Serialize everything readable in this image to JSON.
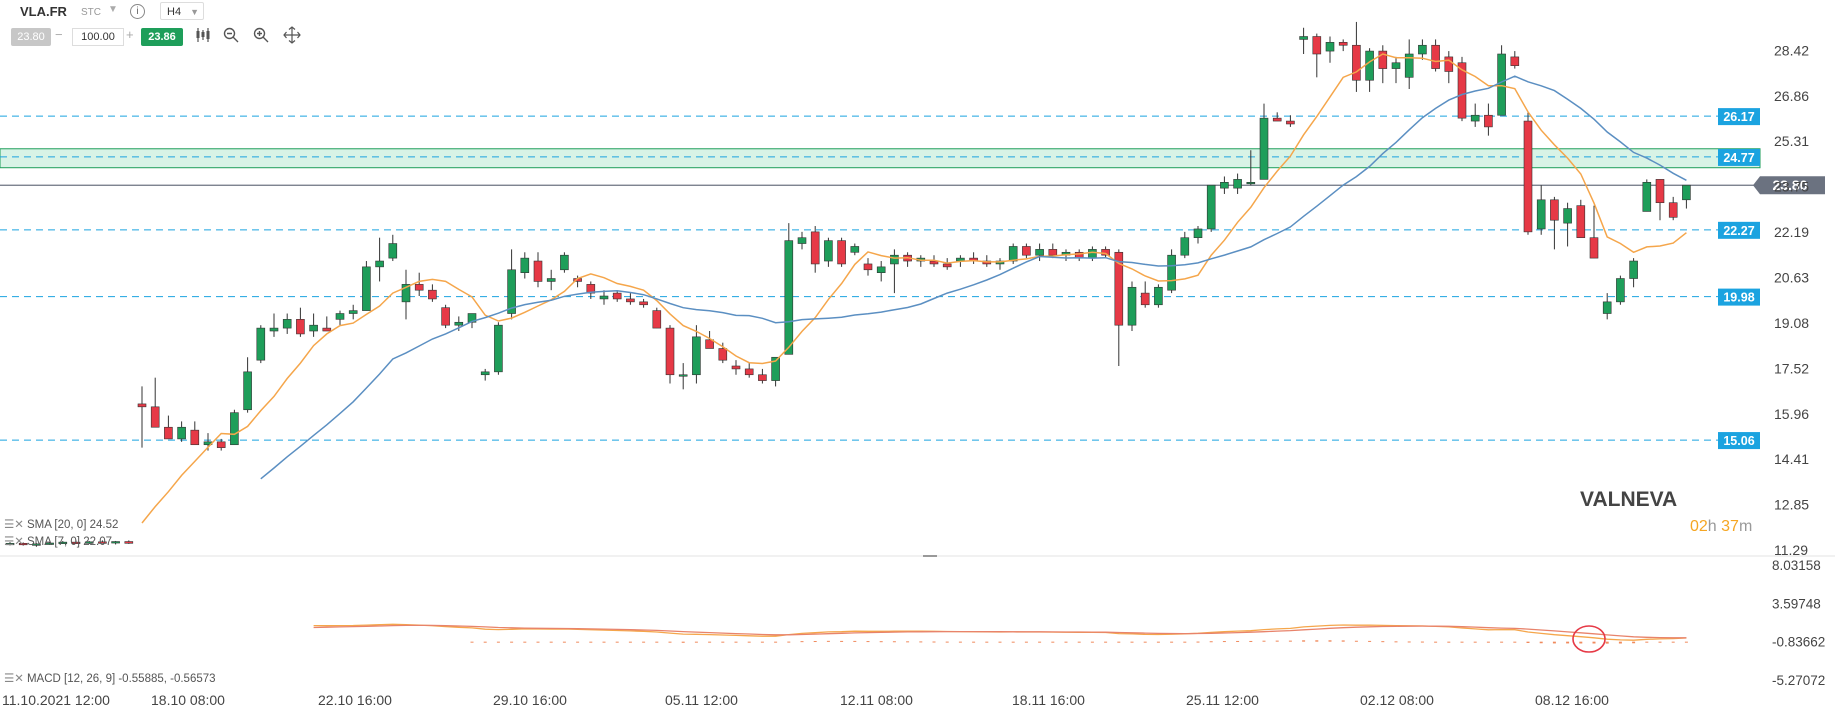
{
  "toolbar": {
    "symbol": "VLA.FR",
    "exchange": "STC",
    "info_icon": "i",
    "timeframe": "H4",
    "bid": "23.80",
    "volume": "100.00",
    "ask": "23.86",
    "tools": [
      "candlestick-icon",
      "zoom-out-icon",
      "zoom-in-icon",
      "crosshair-icon"
    ]
  },
  "indicators": {
    "sma20": "SMA [20, 0] 24.52",
    "sma7": "SMA [7, 0] 22.07",
    "macd": "MACD [12, 26, 9] -0.55885, -0.56573"
  },
  "brand": "VALNEVA",
  "timer": {
    "h": "02",
    "hu": "h",
    "m": "37",
    "mu": "m"
  },
  "colors": {
    "bull": "#1e9e5a",
    "bear": "#e63946",
    "sma7": "#f5a64b",
    "sma20": "#5b8fc2",
    "level": "#1ba3e0",
    "current": "#6b7280",
    "zone": "#d8f3e6",
    "macd": "#f08a5d"
  },
  "chart_data": {
    "type": "candlestick",
    "y_ticks": [
      "28.42",
      "26.86",
      "25.31",
      "23.75",
      "22.19",
      "20.63",
      "19.08",
      "17.52",
      "15.96",
      "14.41",
      "12.85",
      "11.29"
    ],
    "x_labels": [
      "11.10.2021 12:00",
      "18.10 08:00",
      "22.10 16:00",
      "29.10 16:00",
      "05.11 12:00",
      "12.11 08:00",
      "18.11 16:00",
      "25.11 12:00",
      "02.12 08:00",
      "08.12 16:00"
    ],
    "current_price": "23.80",
    "levels": [
      "26.17",
      "24.77",
      "22.27",
      "19.98",
      "15.06"
    ],
    "zone": [
      24.4,
      25.05
    ],
    "macd_ticks": [
      "8.03158",
      "3.59748",
      "-0.83662",
      "-5.27072"
    ],
    "candles": [
      [
        11.5,
        11.56,
        11.45,
        11.52
      ],
      [
        11.52,
        11.55,
        11.44,
        11.47
      ],
      [
        11.47,
        11.53,
        11.4,
        11.5
      ],
      [
        11.5,
        11.56,
        11.47,
        11.53
      ],
      [
        11.53,
        11.6,
        11.5,
        11.56
      ],
      [
        11.56,
        11.62,
        11.5,
        11.53
      ],
      [
        11.53,
        11.6,
        11.5,
        11.57
      ],
      [
        11.57,
        11.62,
        11.52,
        11.55
      ],
      [
        11.55,
        11.6,
        11.48,
        11.58
      ],
      [
        11.58,
        11.62,
        11.5,
        11.52
      ],
      [
        16.3,
        16.9,
        14.8,
        16.2
      ],
      [
        16.2,
        17.2,
        15.6,
        15.5
      ],
      [
        15.5,
        15.9,
        15.2,
        15.1
      ],
      [
        15.1,
        15.7,
        15.0,
        15.5
      ],
      [
        15.4,
        15.7,
        14.9,
        14.9
      ],
      [
        14.9,
        15.3,
        14.7,
        15.0
      ],
      [
        15.0,
        15.1,
        14.7,
        14.8
      ],
      [
        14.9,
        16.1,
        14.9,
        16.0
      ],
      [
        16.1,
        17.9,
        16.0,
        17.4
      ],
      [
        17.8,
        19.0,
        17.7,
        18.9
      ],
      [
        18.8,
        19.4,
        18.6,
        18.9
      ],
      [
        18.9,
        19.4,
        18.7,
        19.2
      ],
      [
        19.2,
        19.6,
        18.6,
        18.7
      ],
      [
        18.8,
        19.4,
        18.6,
        19.0
      ],
      [
        18.9,
        19.3,
        18.8,
        18.8
      ],
      [
        19.2,
        19.5,
        19.0,
        19.4
      ],
      [
        19.4,
        19.7,
        19.2,
        19.5
      ],
      [
        19.5,
        21.2,
        19.5,
        21.0
      ],
      [
        21.0,
        22.0,
        20.5,
        21.2
      ],
      [
        21.3,
        22.1,
        21.2,
        21.8
      ],
      [
        19.8,
        20.9,
        19.2,
        20.4
      ],
      [
        20.4,
        20.8,
        20.0,
        20.2
      ],
      [
        20.2,
        20.4,
        19.8,
        19.9
      ],
      [
        19.6,
        19.7,
        18.9,
        19.0
      ],
      [
        19.0,
        19.3,
        18.8,
        19.1
      ],
      [
        19.1,
        19.4,
        18.9,
        19.4
      ],
      [
        17.3,
        17.5,
        17.1,
        17.4
      ],
      [
        17.4,
        19.1,
        17.3,
        19.0
      ],
      [
        19.4,
        21.6,
        19.2,
        20.9
      ],
      [
        20.8,
        21.5,
        20.6,
        21.3
      ],
      [
        21.2,
        21.5,
        20.3,
        20.5
      ],
      [
        20.5,
        20.9,
        20.2,
        20.6
      ],
      [
        20.9,
        21.5,
        20.8,
        21.4
      ],
      [
        20.6,
        20.7,
        20.3,
        20.5
      ],
      [
        20.4,
        20.5,
        19.9,
        20.1
      ],
      [
        19.9,
        20.2,
        19.7,
        20.0
      ],
      [
        20.1,
        20.2,
        19.8,
        19.9
      ],
      [
        19.9,
        20.1,
        19.7,
        19.8
      ],
      [
        19.8,
        19.9,
        19.6,
        19.7
      ],
      [
        19.5,
        19.6,
        18.9,
        18.9
      ],
      [
        18.9,
        19.0,
        17.0,
        17.3
      ],
      [
        17.3,
        17.7,
        16.8,
        17.3
      ],
      [
        17.3,
        19.0,
        17.0,
        18.6
      ],
      [
        18.5,
        18.8,
        18.2,
        18.2
      ],
      [
        18.2,
        18.4,
        17.7,
        17.8
      ],
      [
        17.6,
        17.8,
        17.3,
        17.5
      ],
      [
        17.5,
        17.7,
        17.2,
        17.3
      ],
      [
        17.3,
        17.5,
        17.0,
        17.1
      ],
      [
        17.1,
        17.9,
        16.9,
        17.9
      ],
      [
        18.0,
        22.5,
        18.0,
        21.9
      ],
      [
        21.8,
        22.2,
        21.6,
        22.0
      ],
      [
        22.2,
        22.4,
        20.8,
        21.1
      ],
      [
        21.2,
        22.0,
        21.0,
        21.9
      ],
      [
        21.9,
        22.0,
        21.0,
        21.1
      ],
      [
        21.5,
        21.8,
        21.4,
        21.7
      ],
      [
        21.1,
        21.3,
        20.7,
        20.9
      ],
      [
        20.8,
        21.2,
        20.5,
        21.0
      ],
      [
        21.1,
        21.6,
        20.1,
        21.4
      ],
      [
        21.4,
        21.5,
        21.0,
        21.2
      ],
      [
        21.2,
        21.4,
        21.0,
        21.3
      ],
      [
        21.2,
        21.4,
        21.0,
        21.1
      ],
      [
        21.1,
        21.3,
        20.9,
        21.0
      ],
      [
        21.2,
        21.4,
        21.0,
        21.3
      ],
      [
        21.3,
        21.5,
        21.1,
        21.2
      ],
      [
        21.2,
        21.4,
        21.0,
        21.1
      ],
      [
        21.1,
        21.3,
        20.9,
        21.2
      ],
      [
        21.2,
        21.8,
        21.1,
        21.7
      ],
      [
        21.7,
        21.8,
        21.3,
        21.4
      ],
      [
        21.4,
        21.8,
        21.2,
        21.6
      ],
      [
        21.6,
        21.8,
        21.3,
        21.4
      ],
      [
        21.4,
        21.6,
        21.2,
        21.5
      ],
      [
        21.5,
        21.6,
        21.2,
        21.3
      ],
      [
        21.3,
        21.7,
        21.2,
        21.6
      ],
      [
        21.6,
        21.7,
        21.3,
        21.4
      ],
      [
        21.5,
        21.6,
        17.6,
        19.0
      ],
      [
        19.0,
        20.5,
        18.8,
        20.3
      ],
      [
        20.1,
        20.5,
        19.6,
        19.7
      ],
      [
        19.7,
        20.4,
        19.6,
        20.3
      ],
      [
        20.2,
        21.6,
        20.1,
        21.4
      ],
      [
        21.4,
        22.2,
        21.3,
        22.0
      ],
      [
        22.0,
        22.4,
        21.8,
        22.3
      ],
      [
        22.3,
        23.8,
        22.2,
        23.8
      ],
      [
        23.7,
        24.1,
        23.5,
        23.9
      ],
      [
        23.7,
        24.2,
        23.5,
        24.0
      ],
      [
        23.9,
        25.0,
        23.8,
        23.9
      ],
      [
        24.0,
        26.6,
        24.0,
        26.1
      ],
      [
        26.1,
        26.3,
        26.0,
        26.0
      ],
      [
        26.0,
        26.2,
        25.8,
        25.9
      ],
      [
        28.8,
        29.2,
        28.3,
        28.9
      ],
      [
        28.9,
        29.0,
        27.5,
        28.3
      ],
      [
        28.4,
        28.9,
        28.0,
        28.7
      ],
      [
        28.7,
        28.8,
        28.4,
        28.6
      ],
      [
        28.6,
        29.4,
        27.0,
        27.4
      ],
      [
        27.4,
        28.5,
        27.0,
        28.4
      ],
      [
        28.4,
        28.6,
        27.3,
        27.8
      ],
      [
        27.8,
        28.2,
        27.3,
        28.0
      ],
      [
        27.5,
        28.8,
        27.1,
        28.3
      ],
      [
        28.3,
        28.8,
        28.1,
        28.6
      ],
      [
        28.6,
        28.8,
        27.7,
        27.8
      ],
      [
        28.2,
        28.4,
        27.3,
        27.7
      ],
      [
        28.0,
        28.2,
        26.0,
        26.1
      ],
      [
        26.0,
        26.6,
        25.8,
        26.2
      ],
      [
        26.2,
        26.6,
        25.5,
        25.8
      ],
      [
        26.2,
        28.6,
        26.2,
        28.3
      ],
      [
        28.2,
        28.4,
        27.8,
        27.9
      ],
      [
        26.0,
        26.3,
        22.1,
        22.2
      ],
      [
        22.3,
        23.8,
        22.1,
        23.3
      ],
      [
        23.3,
        23.4,
        21.6,
        22.6
      ],
      [
        22.5,
        23.2,
        21.7,
        23.0
      ],
      [
        23.1,
        23.3,
        22.0,
        22.0
      ],
      [
        22.0,
        23.1,
        21.3,
        21.3
      ],
      [
        19.4,
        20.1,
        19.2,
        19.8
      ],
      [
        19.8,
        20.7,
        19.7,
        20.6
      ],
      [
        20.6,
        21.3,
        20.3,
        21.2
      ],
      [
        22.9,
        24.0,
        22.9,
        23.9
      ],
      [
        24.0,
        24.0,
        22.6,
        23.2
      ],
      [
        23.2,
        23.4,
        22.6,
        22.7
      ],
      [
        23.3,
        23.7,
        23.0,
        23.8
      ]
    ]
  }
}
